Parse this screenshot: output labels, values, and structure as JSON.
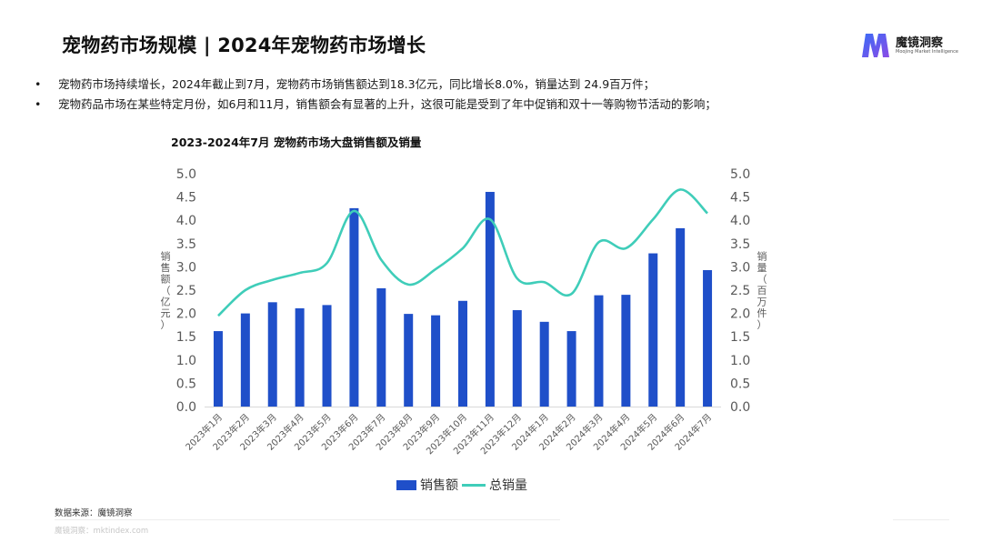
{
  "header": {
    "title": "宠物药市场规模 | 2024年宠物药市场增长",
    "brand_name": "魔镜洞察",
    "brand_tagline": "Moojing Market Intelligence"
  },
  "bullets": [
    {
      "marker": "•",
      "text": "宠物药市场持续增长，2024年截止到7月，宠物药市场销售额达到18.3亿元，同比增长8.0%，销量达到 24.9百万件；"
    },
    {
      "marker": "•",
      "text": "宠物药品市场在某些特定月份，如6月和11月，销售额会有显著的上升，这很可能是受到了年中促销和双十一等购物节活动的影响；"
    }
  ],
  "chart_data": {
    "type": "bar",
    "title": "2023-2024年7月 宠物药市场大盘销售额及销量",
    "categories": [
      "2023年1月",
      "2023年2月",
      "2023年3月",
      "2023年4月",
      "2023年5月",
      "2023年6月",
      "2023年7月",
      "2023年8月",
      "2023年9月",
      "2023年10月",
      "2023年11月",
      "2023年12月",
      "2024年1月",
      "2024年2月",
      "2024年3月",
      "2024年4月",
      "2024年5月",
      "2024年6月",
      "2024年7月"
    ],
    "series": [
      {
        "name": "销售额",
        "type": "bar",
        "axis": "left",
        "color": "#1f4fc9",
        "values": [
          1.62,
          2.0,
          2.24,
          2.11,
          2.18,
          4.26,
          2.54,
          1.99,
          1.96,
          2.27,
          4.61,
          2.07,
          1.82,
          1.62,
          2.39,
          2.4,
          3.29,
          3.83,
          2.93
        ]
      },
      {
        "name": "总销量",
        "type": "line",
        "axis": "right",
        "color": "#3fcdb9",
        "values": [
          1.95,
          2.5,
          2.72,
          2.87,
          3.08,
          4.2,
          3.15,
          2.62,
          2.95,
          3.4,
          4.02,
          2.75,
          2.67,
          2.42,
          3.53,
          3.4,
          4.02,
          4.66,
          4.15
        ]
      }
    ],
    "ylabel_left": "销售额（亿元）",
    "ylabel_right": "销量（百万件）",
    "ylim": [
      0,
      5
    ],
    "yticks": [
      "0.0",
      "0.5",
      "1.0",
      "1.5",
      "2.0",
      "2.5",
      "3.0",
      "3.5",
      "4.0",
      "4.5",
      "5.0"
    ],
    "grid": false,
    "legend": "bottom"
  },
  "footer": {
    "source": "数据来源：魔镜洞察",
    "watermark": "魔镜洞察：mktindex.com"
  }
}
